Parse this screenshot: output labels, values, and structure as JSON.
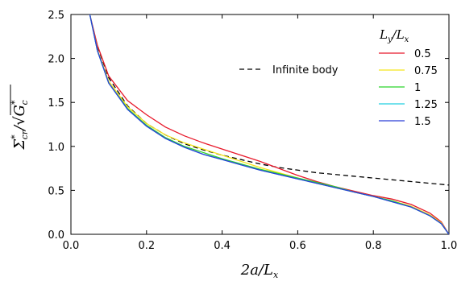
{
  "chart_data": {
    "type": "line",
    "title": "",
    "xlabel": "2a/L_x",
    "ylabel": "Σ*cr/√G*c",
    "xlim": [
      0.0,
      1.0
    ],
    "ylim": [
      0.0,
      2.5
    ],
    "xticks": [
      "0.0",
      "0.2",
      "0.4",
      "0.6",
      "0.8",
      "1.0"
    ],
    "yticks": [
      "0.0",
      "0.5",
      "1.0",
      "1.5",
      "2.0",
      "2.5"
    ],
    "grid": false,
    "legend_title": "L_y/L_x",
    "legend_placement": "top-right",
    "series": [
      {
        "name": "Infinite body",
        "color": "#000000",
        "dashed": true,
        "x": [
          0.055,
          0.07,
          0.1,
          0.15,
          0.2,
          0.25,
          0.3,
          0.35,
          0.4,
          0.45,
          0.5,
          0.55,
          0.6,
          0.65,
          0.7,
          0.75,
          0.8,
          0.85,
          0.9,
          0.95,
          1.0
        ],
        "y": [
          2.4,
          2.14,
          1.78,
          1.46,
          1.26,
          1.13,
          1.03,
          0.96,
          0.9,
          0.85,
          0.8,
          0.76,
          0.73,
          0.7,
          0.68,
          0.66,
          0.64,
          0.62,
          0.6,
          0.58,
          0.56
        ]
      },
      {
        "name": "0.5",
        "color": "#e8182a",
        "x": [
          0.05,
          0.07,
          0.1,
          0.15,
          0.2,
          0.25,
          0.3,
          0.35,
          0.4,
          0.45,
          0.5,
          0.55,
          0.6,
          0.65,
          0.7,
          0.75,
          0.8,
          0.85,
          0.9,
          0.95,
          0.98,
          1.0
        ],
        "y": [
          2.5,
          2.15,
          1.8,
          1.52,
          1.36,
          1.22,
          1.12,
          1.04,
          0.97,
          0.9,
          0.83,
          0.75,
          0.67,
          0.6,
          0.54,
          0.49,
          0.44,
          0.4,
          0.34,
          0.24,
          0.14,
          0.0
        ]
      },
      {
        "name": "0.75",
        "color": "#f5e51a",
        "x": [
          0.05,
          0.07,
          0.1,
          0.15,
          0.2,
          0.25,
          0.3,
          0.35,
          0.4,
          0.45,
          0.5,
          0.55,
          0.6,
          0.65,
          0.7,
          0.75,
          0.8,
          0.85,
          0.9,
          0.95,
          0.98,
          1.0
        ],
        "y": [
          2.5,
          2.1,
          1.74,
          1.45,
          1.26,
          1.13,
          1.04,
          0.97,
          0.9,
          0.83,
          0.76,
          0.7,
          0.64,
          0.58,
          0.53,
          0.48,
          0.43,
          0.38,
          0.32,
          0.22,
          0.13,
          0.0
        ]
      },
      {
        "name": "1",
        "color": "#2bd42b",
        "x": [
          0.05,
          0.07,
          0.1,
          0.15,
          0.2,
          0.25,
          0.3,
          0.35,
          0.4,
          0.45,
          0.5,
          0.55,
          0.6,
          0.65,
          0.7,
          0.75,
          0.8,
          0.85,
          0.9,
          0.95,
          0.98,
          1.0
        ],
        "y": [
          2.5,
          2.09,
          1.72,
          1.43,
          1.24,
          1.1,
          1.0,
          0.93,
          0.86,
          0.8,
          0.74,
          0.69,
          0.64,
          0.59,
          0.54,
          0.48,
          0.43,
          0.38,
          0.31,
          0.21,
          0.12,
          0.0
        ]
      },
      {
        "name": "1.25",
        "color": "#21cfe0",
        "x": [
          0.05,
          0.07,
          0.1,
          0.15,
          0.2,
          0.25,
          0.3,
          0.35,
          0.4,
          0.45,
          0.5,
          0.55,
          0.6,
          0.65,
          0.7,
          0.75,
          0.8,
          0.85,
          0.9,
          0.95,
          0.98,
          1.0
        ],
        "y": [
          2.5,
          2.09,
          1.72,
          1.42,
          1.23,
          1.09,
          0.99,
          0.91,
          0.85,
          0.79,
          0.73,
          0.68,
          0.63,
          0.58,
          0.53,
          0.48,
          0.43,
          0.37,
          0.31,
          0.21,
          0.12,
          0.0
        ]
      },
      {
        "name": "1.5",
        "color": "#2b3fd6",
        "x": [
          0.05,
          0.07,
          0.1,
          0.15,
          0.2,
          0.25,
          0.3,
          0.35,
          0.4,
          0.45,
          0.5,
          0.55,
          0.6,
          0.65,
          0.7,
          0.75,
          0.8,
          0.85,
          0.9,
          0.95,
          0.98,
          1.0
        ],
        "y": [
          2.5,
          2.09,
          1.72,
          1.42,
          1.23,
          1.09,
          0.99,
          0.91,
          0.85,
          0.79,
          0.73,
          0.68,
          0.63,
          0.58,
          0.53,
          0.48,
          0.43,
          0.37,
          0.31,
          0.21,
          0.12,
          0.0
        ]
      }
    ]
  }
}
